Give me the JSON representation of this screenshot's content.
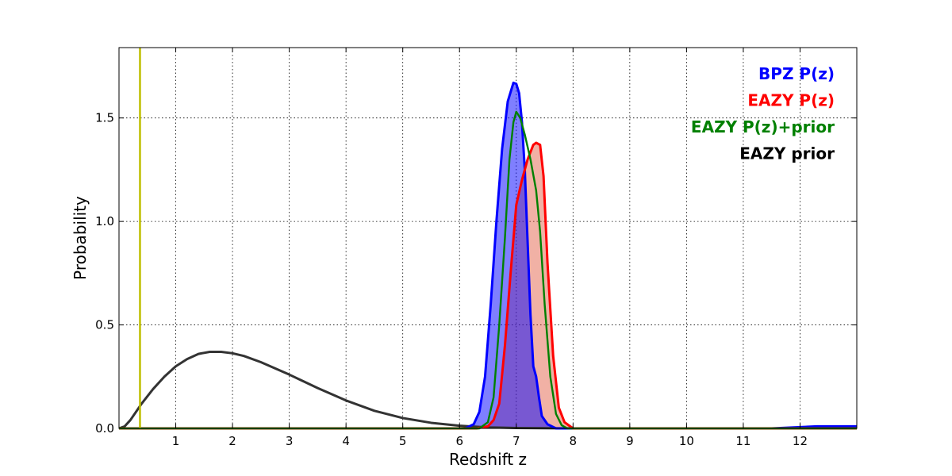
{
  "chart_data": {
    "type": "area",
    "xlabel": "Redshift z",
    "ylabel": "Probability",
    "xlim": [
      0,
      13
    ],
    "ylim": [
      0,
      1.84
    ],
    "x_ticks": [
      "1",
      "2",
      "3",
      "4",
      "5",
      "6",
      "7",
      "8",
      "9",
      "10",
      "11",
      "12"
    ],
    "y_ticks": [
      "0.0",
      "0.5",
      "1.0",
      "1.5"
    ],
    "grid": true,
    "legend_position": "top-right",
    "vertical_line": {
      "x": 0.37,
      "color": "#bfbf00"
    },
    "series": [
      {
        "name": "EAZY prior",
        "color": "#333333",
        "fill": null,
        "points": [
          [
            0.0,
            0.0
          ],
          [
            0.1,
            0.01
          ],
          [
            0.2,
            0.04
          ],
          [
            0.3,
            0.08
          ],
          [
            0.4,
            0.12
          ],
          [
            0.6,
            0.19
          ],
          [
            0.8,
            0.25
          ],
          [
            1.0,
            0.3
          ],
          [
            1.2,
            0.335
          ],
          [
            1.4,
            0.36
          ],
          [
            1.6,
            0.37
          ],
          [
            1.8,
            0.37
          ],
          [
            2.0,
            0.363
          ],
          [
            2.2,
            0.35
          ],
          [
            2.5,
            0.32
          ],
          [
            3.0,
            0.26
          ],
          [
            3.5,
            0.195
          ],
          [
            4.0,
            0.135
          ],
          [
            4.5,
            0.085
          ],
          [
            5.0,
            0.05
          ],
          [
            5.5,
            0.027
          ],
          [
            6.0,
            0.013
          ],
          [
            6.5,
            0.005
          ],
          [
            7.0,
            0.002
          ],
          [
            8.0,
            0.0
          ],
          [
            13.0,
            0.0
          ]
        ]
      },
      {
        "name": "BPZ P(z)",
        "color": "#0000ff",
        "fill": "rgba(0,0,255,0.5)",
        "points": [
          [
            0.0,
            0.0
          ],
          [
            6.1,
            0.0
          ],
          [
            6.25,
            0.02
          ],
          [
            6.35,
            0.08
          ],
          [
            6.45,
            0.25
          ],
          [
            6.55,
            0.6
          ],
          [
            6.65,
            1.0
          ],
          [
            6.75,
            1.35
          ],
          [
            6.85,
            1.58
          ],
          [
            6.95,
            1.67
          ],
          [
            7.0,
            1.665
          ],
          [
            7.05,
            1.62
          ],
          [
            7.1,
            1.48
          ],
          [
            7.15,
            1.25
          ],
          [
            7.2,
            0.9
          ],
          [
            7.25,
            0.55
          ],
          [
            7.3,
            0.3
          ],
          [
            7.35,
            0.25
          ],
          [
            7.4,
            0.15
          ],
          [
            7.45,
            0.06
          ],
          [
            7.55,
            0.02
          ],
          [
            7.7,
            0.0
          ],
          [
            11.5,
            0.0
          ],
          [
            12.3,
            0.01
          ],
          [
            13.0,
            0.01
          ]
        ]
      },
      {
        "name": "EAZY P(z)",
        "color": "#ff0000",
        "fill": "rgba(220,60,30,0.4)",
        "points": [
          [
            0.0,
            0.0
          ],
          [
            6.3,
            0.0
          ],
          [
            6.5,
            0.01
          ],
          [
            6.6,
            0.04
          ],
          [
            6.7,
            0.12
          ],
          [
            6.8,
            0.4
          ],
          [
            6.9,
            0.75
          ],
          [
            7.0,
            1.08
          ],
          [
            7.1,
            1.2
          ],
          [
            7.2,
            1.3
          ],
          [
            7.3,
            1.37
          ],
          [
            7.35,
            1.38
          ],
          [
            7.42,
            1.37
          ],
          [
            7.48,
            1.22
          ],
          [
            7.55,
            0.8
          ],
          [
            7.65,
            0.35
          ],
          [
            7.75,
            0.1
          ],
          [
            7.85,
            0.03
          ],
          [
            8.0,
            0.0
          ],
          [
            13.0,
            0.0
          ]
        ]
      },
      {
        "name": "EAZY P(z)+prior",
        "color": "#008000",
        "fill": null,
        "points": [
          [
            0.0,
            0.0
          ],
          [
            6.35,
            0.0
          ],
          [
            6.5,
            0.03
          ],
          [
            6.6,
            0.15
          ],
          [
            6.7,
            0.5
          ],
          [
            6.8,
            0.92
          ],
          [
            6.88,
            1.3
          ],
          [
            6.95,
            1.48
          ],
          [
            7.0,
            1.53
          ],
          [
            7.07,
            1.5
          ],
          [
            7.15,
            1.42
          ],
          [
            7.25,
            1.3
          ],
          [
            7.35,
            1.15
          ],
          [
            7.42,
            0.95
          ],
          [
            7.5,
            0.6
          ],
          [
            7.6,
            0.25
          ],
          [
            7.7,
            0.07
          ],
          [
            7.8,
            0.015
          ],
          [
            7.9,
            0.0
          ],
          [
            13.0,
            0.0
          ]
        ]
      }
    ],
    "legend": [
      {
        "label": "BPZ P(z)",
        "color": "#0000ff"
      },
      {
        "label": "EAZY P(z)",
        "color": "#ff0000"
      },
      {
        "label": "EAZY P(z)+prior",
        "color": "#008000"
      },
      {
        "label": "EAZY prior",
        "color": "#000000"
      }
    ]
  }
}
